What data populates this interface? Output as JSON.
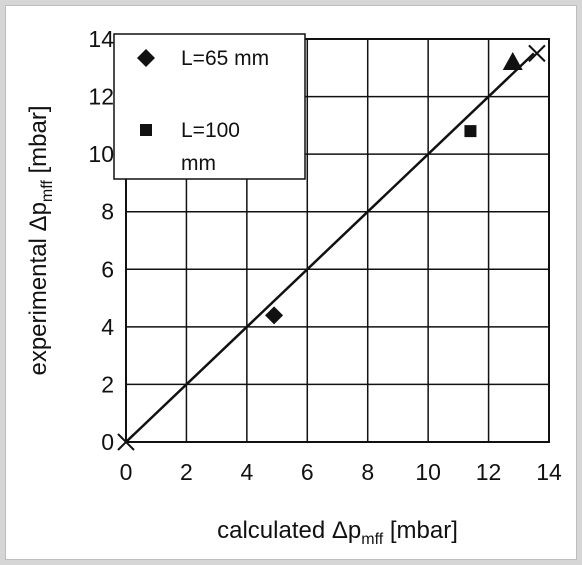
{
  "chart_data": {
    "type": "scatter",
    "xlabel": {
      "prefix": "calculated Δp",
      "sub": "mff",
      "suffix": " [mbar]"
    },
    "ylabel": {
      "prefix": "experimental Δp",
      "sub": "mff",
      "suffix": " [mbar]"
    },
    "xlim": [
      0,
      14
    ],
    "ylim": [
      0,
      14
    ],
    "xticks": [
      0,
      2,
      4,
      6,
      8,
      10,
      12,
      14
    ],
    "yticks": [
      0,
      2,
      4,
      6,
      8,
      10,
      12,
      14
    ],
    "grid": true,
    "legend_position": "top-left",
    "series": [
      {
        "name": "L=65 mm",
        "marker": "diamond",
        "in_legend": true,
        "points": [
          [
            4.9,
            4.4
          ]
        ]
      },
      {
        "name": "L=100 mm",
        "legend_lines": [
          "L=100",
          "mm"
        ],
        "marker": "square",
        "in_legend": true,
        "points": [
          [
            11.4,
            10.8
          ]
        ]
      },
      {
        "marker": "triangle",
        "in_legend": false,
        "points": [
          [
            12.8,
            13.2
          ]
        ]
      },
      {
        "marker": "x",
        "in_legend": false,
        "points": [
          [
            13.6,
            13.5
          ],
          [
            0,
            0
          ]
        ]
      }
    ],
    "reference_line": {
      "type": "y=x",
      "from": [
        0,
        0
      ],
      "to": [
        13.5,
        13.5
      ]
    }
  }
}
